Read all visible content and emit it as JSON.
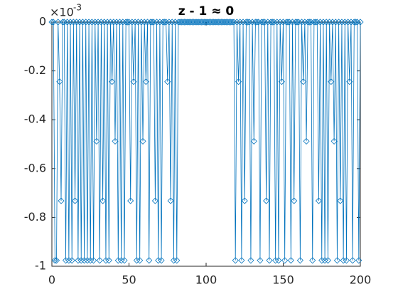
{
  "chart_data": {
    "type": "line",
    "title": "z - 1 ≈ 0",
    "y_multiplier": "×10",
    "y_exponent": "-3",
    "x": [
      0,
      1,
      2,
      3,
      4,
      5,
      6,
      7,
      8,
      9,
      10,
      11,
      12,
      13,
      14,
      15,
      16,
      17,
      18,
      19,
      20,
      21,
      22,
      23,
      24,
      25,
      26,
      27,
      28,
      29,
      30,
      31,
      32,
      33,
      34,
      35,
      36,
      37,
      38,
      39,
      40,
      41,
      42,
      43,
      44,
      45,
      46,
      47,
      48,
      49,
      50,
      51,
      52,
      53,
      54,
      55,
      56,
      57,
      58,
      59,
      60,
      61,
      62,
      63,
      64,
      65,
      66,
      67,
      68,
      69,
      70,
      71,
      72,
      73,
      74,
      75,
      76,
      77,
      78,
      79,
      80,
      81,
      82,
      83,
      84,
      85,
      86,
      87,
      88,
      89,
      90,
      91,
      92,
      93,
      94,
      95,
      96,
      97,
      98,
      99,
      100,
      101,
      102,
      103,
      104,
      105,
      106,
      107,
      108,
      109,
      110,
      111,
      112,
      113,
      114,
      115,
      116,
      117,
      118,
      119,
      120,
      121,
      122,
      123,
      124,
      125,
      126,
      127,
      128,
      129,
      130,
      131,
      132,
      133,
      134,
      135,
      136,
      137,
      138,
      139,
      140,
      141,
      142,
      143,
      144,
      145,
      146,
      147,
      148,
      149,
      150,
      151,
      152,
      153,
      154,
      155,
      156,
      157,
      158,
      159,
      160,
      161,
      162,
      163,
      164,
      165,
      166,
      167,
      168,
      169,
      170,
      171,
      172,
      173,
      174,
      175,
      176,
      177,
      178,
      179,
      180,
      181,
      182,
      183,
      184,
      185,
      186,
      187,
      188,
      189,
      190,
      191,
      192,
      193,
      194,
      195,
      196,
      197,
      198,
      199,
      200
    ],
    "series": [
      {
        "color": "#0072BD",
        "marker": "diamond",
        "values": [
          0,
          0,
          -0.976,
          -0.976,
          0,
          -0.244,
          -0.732,
          0,
          0,
          -0.976,
          0,
          -0.976,
          0,
          -0.976,
          0,
          -0.732,
          0,
          -0.976,
          0,
          -0.976,
          0,
          -0.976,
          0,
          -0.976,
          0,
          -0.976,
          0,
          -0.976,
          0,
          -0.488,
          0,
          -0.976,
          0,
          -0.732,
          0,
          -0.976,
          0,
          -0.976,
          0,
          -0.244,
          0,
          -0.488,
          0,
          -0.976,
          0,
          -0.976,
          0,
          -0.976,
          0,
          0,
          0,
          -0.732,
          0,
          -0.244,
          0,
          -0.976,
          0,
          -0.976,
          0,
          -0.488,
          0,
          -0.244,
          0,
          -0.976,
          0,
          0,
          0,
          -0.732,
          0,
          -0.976,
          0,
          -0.976,
          0,
          0,
          0,
          -0.244,
          0,
          -0.732,
          0,
          -0.976,
          0,
          -0.976,
          0,
          0,
          0,
          0,
          0,
          0,
          0,
          0,
          0,
          0,
          0,
          0,
          0,
          0,
          0,
          0,
          0,
          0,
          0,
          0,
          0,
          0,
          0,
          0,
          0,
          0,
          0,
          0,
          0,
          0,
          0,
          0,
          0,
          0,
          0,
          0,
          0,
          -0.976,
          0,
          -0.244,
          0,
          -0.976,
          0,
          -0.732,
          0,
          0,
          0,
          -0.976,
          0,
          -0.488,
          0,
          0,
          0,
          -0.976,
          0,
          0,
          0,
          -0.732,
          0,
          -0.976,
          0,
          0,
          0,
          -0.976,
          0,
          -0.976,
          0,
          -0.244,
          0,
          -0.976,
          0,
          0,
          0,
          -0.976,
          0,
          -0.732,
          0,
          0,
          0,
          -0.976,
          0,
          -0.244,
          0,
          -0.488,
          0,
          0,
          0,
          -0.976,
          0,
          0,
          0,
          -0.732,
          0,
          -0.976,
          0,
          -0.976,
          0,
          -0.976,
          0,
          -0.244,
          0,
          -0.488,
          0,
          -0.976,
          0,
          -0.732,
          0,
          -0.976,
          0,
          -0.976,
          0,
          -0.244,
          0,
          -0.976,
          0,
          0,
          0,
          -0.976,
          0
        ]
      }
    ],
    "xlim": [
      0,
      200
    ],
    "xticks": [
      0,
      50,
      100,
      150,
      200
    ],
    "ylim": [
      -1,
      0
    ],
    "yticks": [
      -1,
      -0.8,
      -0.6,
      -0.4,
      -0.2,
      0
    ],
    "grid": false
  }
}
